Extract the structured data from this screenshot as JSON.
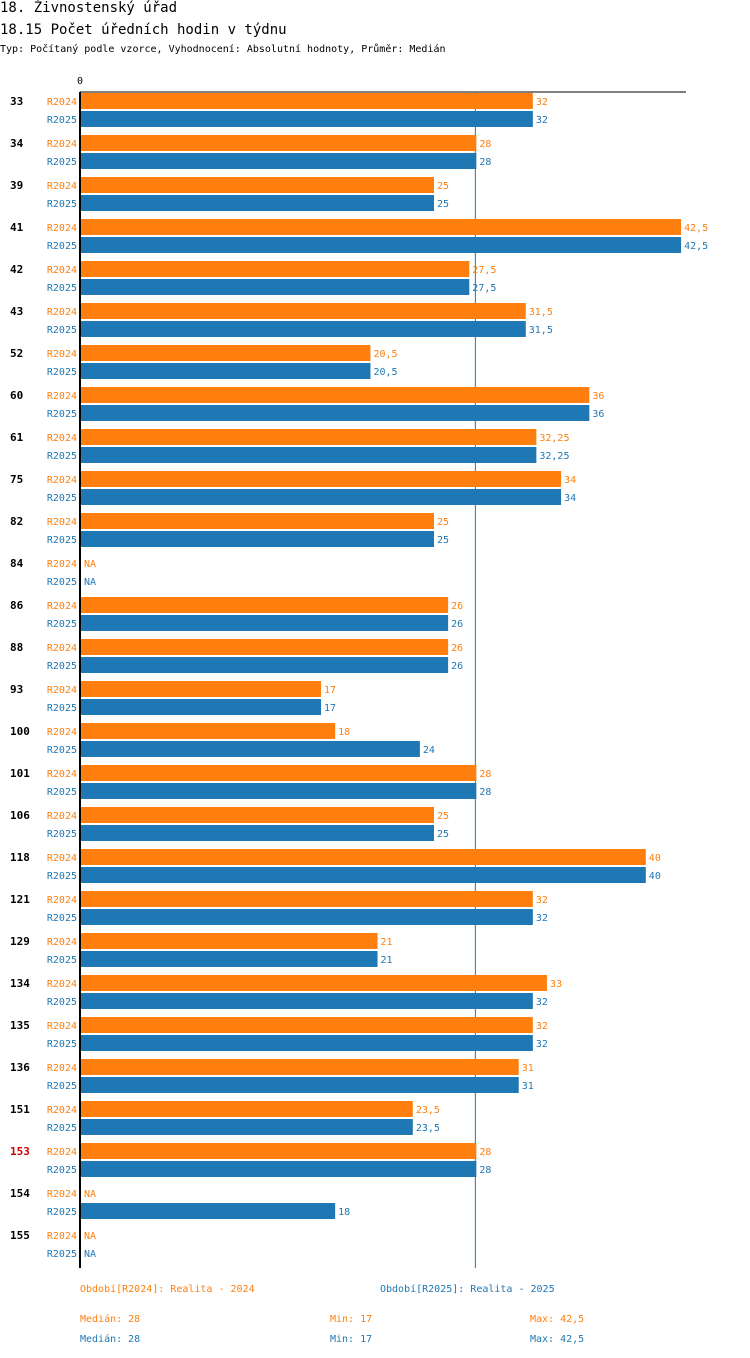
{
  "header": {
    "title": "18. Živnostenský úřad",
    "subtitle": "18.15 Počet úředních hodin v týdnu",
    "type_line": "Typ: Počítaný podle vzorce, Vyhodnocení: Absolutní hodnoty, Průměr: Medián"
  },
  "colors": {
    "r2024": "#ff7f0e",
    "r2025": "#1f77b4",
    "highlight": "#cc0000"
  },
  "chart_data": {
    "type": "bar",
    "orientation": "horizontal",
    "x_tick_label": "0",
    "xlim": [
      0,
      43
    ],
    "reference_line": 28,
    "highlight_category": "153",
    "series": [
      {
        "name": "R2024",
        "label": "R2024"
      },
      {
        "name": "R2025",
        "label": "R2025"
      }
    ],
    "categories": [
      {
        "id": "33",
        "r2024": "32",
        "r2025": "32"
      },
      {
        "id": "34",
        "r2024": "28",
        "r2025": "28"
      },
      {
        "id": "39",
        "r2024": "25",
        "r2025": "25"
      },
      {
        "id": "41",
        "r2024": "42,5",
        "r2025": "42,5"
      },
      {
        "id": "42",
        "r2024": "27,5",
        "r2025": "27,5"
      },
      {
        "id": "43",
        "r2024": "31,5",
        "r2025": "31,5"
      },
      {
        "id": "52",
        "r2024": "20,5",
        "r2025": "20,5"
      },
      {
        "id": "60",
        "r2024": "36",
        "r2025": "36"
      },
      {
        "id": "61",
        "r2024": "32,25",
        "r2025": "32,25"
      },
      {
        "id": "75",
        "r2024": "34",
        "r2025": "34"
      },
      {
        "id": "82",
        "r2024": "25",
        "r2025": "25"
      },
      {
        "id": "84",
        "r2024": "NA",
        "r2025": "NA"
      },
      {
        "id": "86",
        "r2024": "26",
        "r2025": "26"
      },
      {
        "id": "88",
        "r2024": "26",
        "r2025": "26"
      },
      {
        "id": "93",
        "r2024": "17",
        "r2025": "17"
      },
      {
        "id": "100",
        "r2024": "18",
        "r2025": "24"
      },
      {
        "id": "101",
        "r2024": "28",
        "r2025": "28"
      },
      {
        "id": "106",
        "r2024": "25",
        "r2025": "25"
      },
      {
        "id": "118",
        "r2024": "40",
        "r2025": "40"
      },
      {
        "id": "121",
        "r2024": "32",
        "r2025": "32"
      },
      {
        "id": "129",
        "r2024": "21",
        "r2025": "21"
      },
      {
        "id": "134",
        "r2024": "33",
        "r2025": "32"
      },
      {
        "id": "135",
        "r2024": "32",
        "r2025": "32"
      },
      {
        "id": "136",
        "r2024": "31",
        "r2025": "31"
      },
      {
        "id": "151",
        "r2024": "23,5",
        "r2025": "23,5"
      },
      {
        "id": "153",
        "r2024": "28",
        "r2025": "28"
      },
      {
        "id": "154",
        "r2024": "NA",
        "r2025": "18"
      },
      {
        "id": "155",
        "r2024": "NA",
        "r2025": "NA"
      }
    ]
  },
  "footer": {
    "period_2024": "Období[R2024]: Realita - 2024",
    "period_2025": "Období[R2025]: Realita - 2025",
    "median_2024": "Medián: 28",
    "min_2024": "Min: 17",
    "max_2024": "Max: 42,5",
    "median_2025": "Medián: 28",
    "min_2025": "Min: 17",
    "max_2025": "Max: 42,5"
  }
}
